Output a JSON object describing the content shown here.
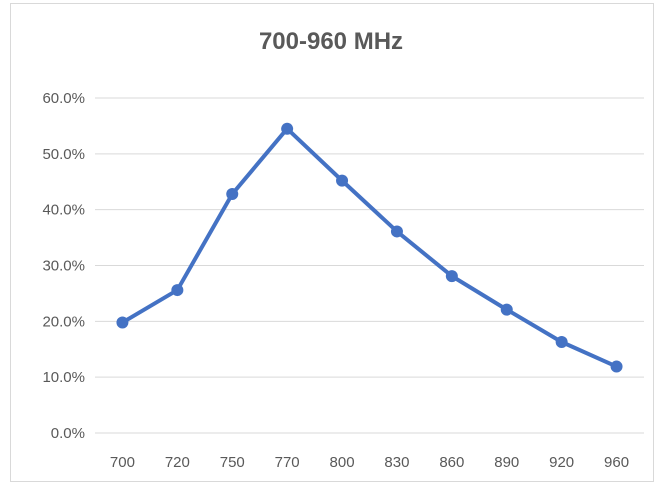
{
  "chart_data": {
    "type": "line",
    "title": "700-960 MHz",
    "xlabel": "",
    "ylabel": "",
    "categories": [
      "700",
      "720",
      "750",
      "770",
      "800",
      "830",
      "860",
      "890",
      "920",
      "960"
    ],
    "y_ticks": [
      "0.0%",
      "10.0%",
      "20.0%",
      "30.0%",
      "40.0%",
      "50.0%",
      "60.0%"
    ],
    "ylim": [
      0,
      0.6
    ],
    "grid": true,
    "legend": "none",
    "series": [
      {
        "values": [
          0.198,
          0.256,
          0.428,
          0.545,
          0.452,
          0.361,
          0.281,
          0.221,
          0.163,
          0.119
        ],
        "color": "#4472c4"
      }
    ]
  }
}
